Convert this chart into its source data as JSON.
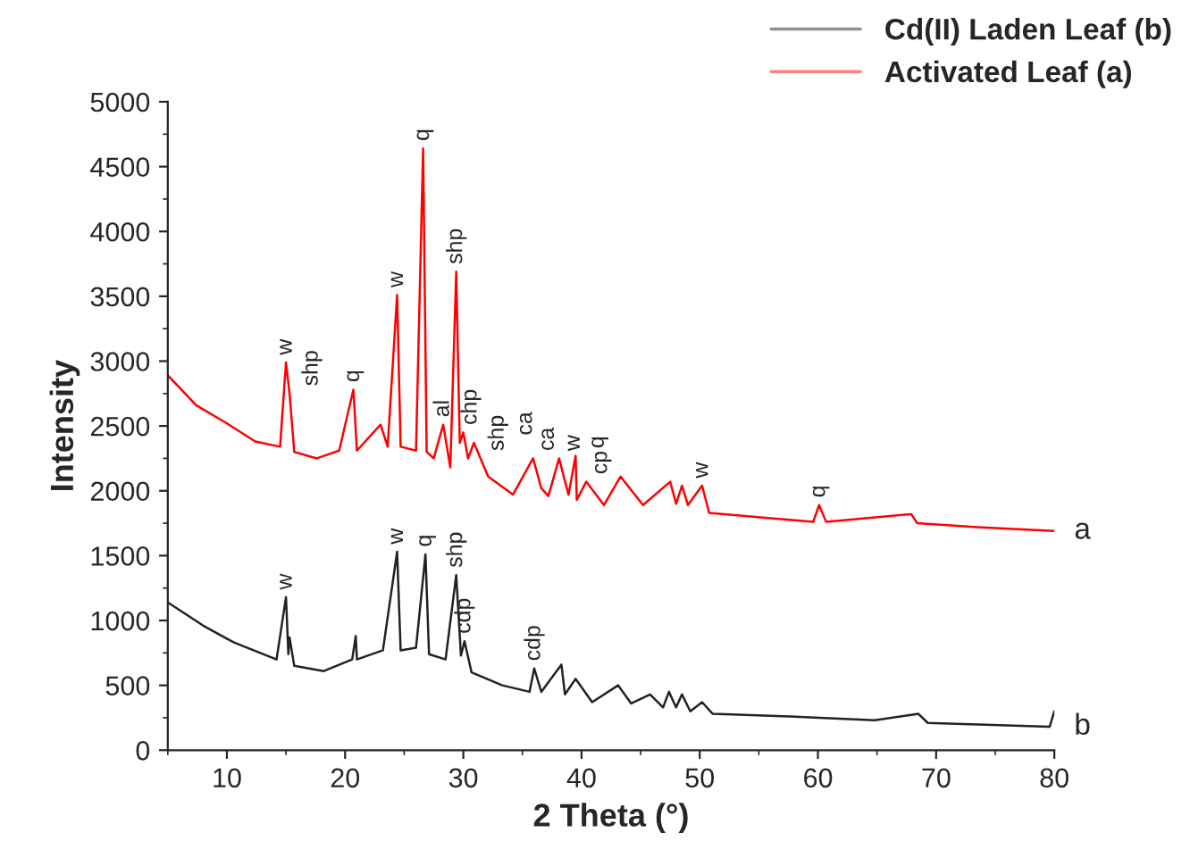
{
  "chart_data": {
    "type": "line",
    "xlabel": "2 Theta (°)",
    "ylabel": "Intensity",
    "xlim": [
      5,
      80
    ],
    "xticks": [
      10,
      20,
      30,
      40,
      50,
      60,
      70,
      80
    ],
    "ylim": [
      0,
      5000
    ],
    "yticks": [
      0,
      500,
      1000,
      1500,
      2000,
      2500,
      3000,
      3500,
      4000,
      4500,
      5000
    ],
    "grid": false,
    "legend": "top right",
    "series": [
      {
        "name": "Cd(II) Laden Leaf (b)",
        "color": "#222222",
        "x": [
          5,
          8,
          10.6,
          14.2,
          15.0,
          15.2,
          15.3,
          15.7,
          18.2,
          20.6,
          20.9,
          21.0,
          23.2,
          24.4,
          24.7,
          26.0,
          26.8,
          27.1,
          28.5,
          29.4,
          29.8,
          30.1,
          30.7,
          33.3,
          35.6,
          36.0,
          36.6,
          38.3,
          38.6,
          39.5,
          40.9,
          43.1,
          44.2,
          45.8,
          46.9,
          47.4,
          48.0,
          48.5,
          49.2,
          50.2,
          51.1,
          57.6,
          64.8,
          68.5,
          69.3,
          79.6,
          80
        ],
        "values": [
          1140,
          960,
          830,
          700,
          1180,
          740,
          870,
          650,
          610,
          700,
          880,
          700,
          770,
          1530,
          770,
          790,
          1510,
          740,
          700,
          1350,
          730,
          840,
          600,
          500,
          450,
          630,
          450,
          660,
          430,
          550,
          370,
          500,
          360,
          430,
          330,
          450,
          330,
          430,
          300,
          370,
          280,
          260,
          230,
          280,
          210,
          180,
          300
        ]
      },
      {
        "name": "Activated Leaf (a)",
        "color": "#ff0000",
        "x": [
          5,
          7.4,
          10,
          12.4,
          14.5,
          15.0,
          15.3,
          15.7,
          17.6,
          19.5,
          20.7,
          21.0,
          23.0,
          23.6,
          24.4,
          24.7,
          26.0,
          26.6,
          26.9,
          27.5,
          28.3,
          28.9,
          29.4,
          29.7,
          30.0,
          30.4,
          30.9,
          32.1,
          34.2,
          35.9,
          36.6,
          37.2,
          38.1,
          38.9,
          39.5,
          39.6,
          40.4,
          41.9,
          43.3,
          45.2,
          47.5,
          48.0,
          48.5,
          49.0,
          50.2,
          50.8,
          55.8,
          59.6,
          60.1,
          60.7,
          67.9,
          68.4,
          73.5,
          80
        ],
        "values": [
          2890,
          2660,
          2520,
          2380,
          2340,
          2990,
          2750,
          2300,
          2250,
          2310,
          2780,
          2310,
          2510,
          2340,
          3510,
          2340,
          2310,
          4640,
          2300,
          2250,
          2510,
          2180,
          3690,
          2370,
          2450,
          2250,
          2370,
          2110,
          1970,
          2250,
          2020,
          1960,
          2250,
          1970,
          2270,
          1930,
          2070,
          1890,
          2110,
          1890,
          2070,
          1900,
          2040,
          1890,
          2040,
          1830,
          1790,
          1760,
          1890,
          1760,
          1820,
          1750,
          1720,
          1690
        ]
      }
    ],
    "annotations": [
      {
        "text": "w",
        "x": 15.0,
        "y": 2990
      },
      {
        "text": "shp",
        "x": 15.3,
        "y": 2750
      },
      {
        "text": "q",
        "x": 20.7,
        "y": 2780
      },
      {
        "text": "w",
        "x": 24.4,
        "y": 3510
      },
      {
        "text": "q",
        "x": 26.6,
        "y": 4640
      },
      {
        "text": "al",
        "x": 28.3,
        "y": 2510
      },
      {
        "text": "shp",
        "x": 29.4,
        "y": 3690
      },
      {
        "text": "chp",
        "x": 30.0,
        "y": 2450
      },
      {
        "text": "shp",
        "x": 30.4,
        "y": 2250
      },
      {
        "text": "ca",
        "x": 30.9,
        "y": 2370
      },
      {
        "text": "ca",
        "x": 35.9,
        "y": 2250
      },
      {
        "text": "w",
        "x": 38.1,
        "y": 2250
      },
      {
        "text": "q",
        "x": 39.5,
        "y": 2270
      },
      {
        "text": "cp",
        "x": 40.4,
        "y": 2070
      },
      {
        "text": "w",
        "x": 50.2,
        "y": 2040
      },
      {
        "text": "q",
        "x": 60.1,
        "y": 1890
      },
      {
        "text": "w",
        "x": 15.0,
        "y": 1180
      },
      {
        "text": "w",
        "x": 24.4,
        "y": 1530
      },
      {
        "text": "q",
        "x": 26.8,
        "y": 1510
      },
      {
        "text": "shp",
        "x": 29.4,
        "y": 1350
      },
      {
        "text": "cdp",
        "x": 30.1,
        "y": 840
      },
      {
        "text": "cdp",
        "x": 36.0,
        "y": 630
      },
      {
        "text": "a",
        "x": 80,
        "y": 1690
      },
      {
        "text": "b",
        "x": 80,
        "y": 180
      }
    ]
  }
}
